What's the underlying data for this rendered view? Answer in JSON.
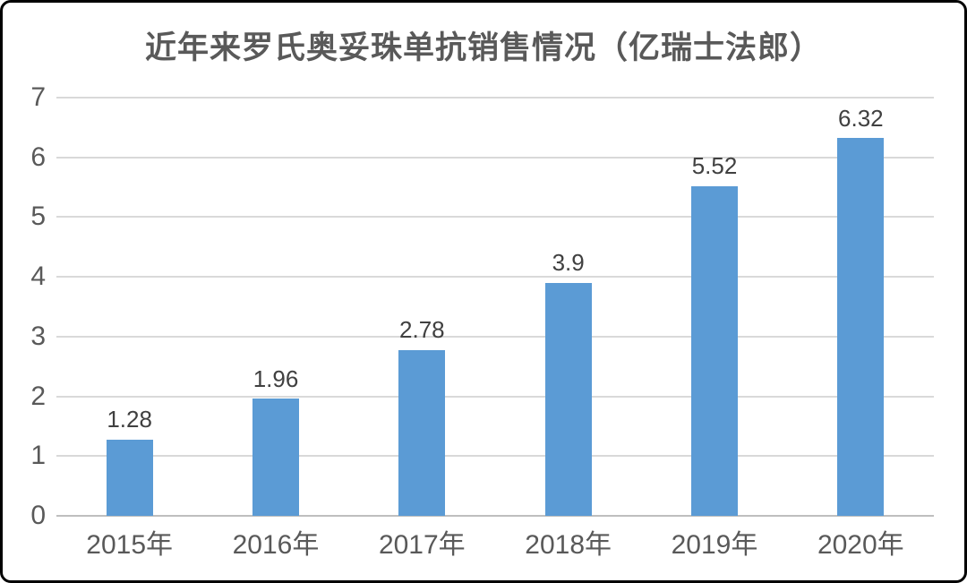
{
  "title": "近年来罗氏奥妥珠单抗销售情况（亿瑞士法郎）",
  "colors": {
    "bar": "#5B9BD5",
    "gridline": "#D9D9D9",
    "axis_line": "#BFBFBF",
    "axis_text": "#595959",
    "data_label_text": "#404040",
    "title_text": "#595959",
    "frame_border": "#000000",
    "background": "#FFFFFF"
  },
  "chart_data": {
    "type": "bar",
    "title": "近年来罗氏奥妥珠单抗销售情况（亿瑞士法郎）",
    "categories": [
      "2015年",
      "2016年",
      "2017年",
      "2018年",
      "2019年",
      "2020年"
    ],
    "values": [
      1.28,
      1.96,
      2.78,
      3.9,
      5.52,
      6.32
    ],
    "data_labels": [
      "1.28",
      "1.96",
      "2.78",
      "3.9",
      "5.52",
      "6.32"
    ],
    "xlabel": "",
    "ylabel": "",
    "ylim": [
      0,
      7
    ],
    "yticks": [
      0,
      1,
      2,
      3,
      4,
      5,
      6,
      7
    ],
    "grid": true,
    "legend": false,
    "legend_position": "none",
    "bar_color": "#5B9BD5"
  }
}
